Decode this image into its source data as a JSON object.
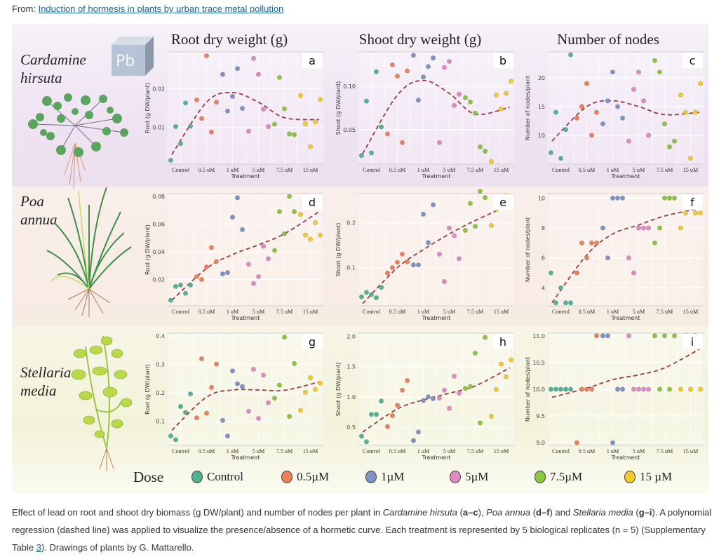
{
  "header": {
    "from_label": "From:",
    "article_link": "Induction of hormesis in plants by urban trace metal pollution"
  },
  "figure": {
    "column_titles": [
      "Root dry weight (g)",
      "Shoot dry weight (g)",
      "Number of nodes"
    ],
    "species": [
      {
        "line1": "Cardamine",
        "line2": "hirsuta"
      },
      {
        "line1": "Poa",
        "line2": "annua"
      },
      {
        "line1": "Stellaria",
        "line2": "media"
      }
    ],
    "element_badge": "Pb",
    "legend": {
      "title": "Dose",
      "items": [
        {
          "label": "Control",
          "color": "#4fb394"
        },
        {
          "label": "0.5µM",
          "color": "#ee7f5a"
        },
        {
          "label": "1µM",
          "color": "#7d93c6"
        },
        {
          "label": "5µM",
          "color": "#e08ac4"
        },
        {
          "label": "7.5µM",
          "color": "#8cc63f"
        },
        {
          "label": "15 µM",
          "color": "#f2cc2c"
        }
      ]
    },
    "fit_color": "#9b3a48"
  },
  "chart_data": [
    {
      "panel": "a",
      "type": "scatter",
      "title": "Root dry weight (g)",
      "xlabel": "Treatment",
      "ylabel": "Root (g DW/plant)",
      "categories": [
        "Control",
        "0.5 uM",
        "1 uM",
        "5 uM",
        "7.5 uM",
        "15 uM"
      ],
      "yticks": [
        0.01,
        0.02
      ],
      "ylim": [
        0.0005,
        0.0295
      ],
      "series": [
        {
          "name": "Control",
          "values": [
            0.0015,
            0.0102,
            0.0058,
            0.0163,
            0.0103
          ]
        },
        {
          "name": "0.5 uM",
          "values": [
            0.0171,
            0.0123,
            0.0285,
            0.0088,
            0.0165
          ]
        },
        {
          "name": "1 uM",
          "values": [
            0.0237,
            0.0142,
            0.018,
            0.0252,
            0.0149
          ]
        },
        {
          "name": "5 uM",
          "values": [
            0.009,
            0.0278,
            0.0237,
            0.0147,
            0.0102
          ]
        },
        {
          "name": "7.5 uM",
          "values": [
            0.0108,
            0.0229,
            0.0148,
            0.0083,
            0.0081
          ]
        },
        {
          "name": "15 uM",
          "values": [
            0.0182,
            0.0109,
            0.005,
            0.0114,
            0.0172
          ]
        }
      ],
      "fit": [
        0.003,
        0.0165,
        0.019,
        0.0165,
        0.0125,
        0.012
      ]
    },
    {
      "panel": "b",
      "type": "scatter",
      "title": "Shoot dry weight (g)",
      "xlabel": "Treatment",
      "ylabel": "Shoot (g DW/plant)",
      "categories": [
        "Control",
        "0.5 uM",
        "1 uM",
        "5 uM",
        "7.5 uM",
        "15 uM"
      ],
      "yticks": [
        0.05,
        0.1
      ],
      "ylim": [
        0.01,
        0.14
      ],
      "series": [
        {
          "name": "Control",
          "values": [
            0.02,
            0.083,
            0.023,
            0.117,
            0.053
          ]
        },
        {
          "name": "0.5 uM",
          "values": [
            0.045,
            0.125,
            0.112,
            0.035,
            0.118
          ]
        },
        {
          "name": "1 uM",
          "values": [
            0.136,
            0.084,
            0.111,
            0.123,
            0.133
          ]
        },
        {
          "name": "5 uM",
          "values": [
            0.035,
            0.122,
            0.129,
            0.078,
            0.091
          ]
        },
        {
          "name": "7.5 uM",
          "values": [
            0.087,
            0.082,
            0.069,
            0.03,
            0.025
          ]
        },
        {
          "name": "15 uM",
          "values": [
            0.013,
            0.09,
            0.074,
            0.092,
            0.106
          ]
        }
      ],
      "fit": [
        0.022,
        0.09,
        0.107,
        0.092,
        0.068,
        0.076
      ]
    },
    {
      "panel": "c",
      "type": "scatter",
      "title": "Number of nodes",
      "xlabel": "Treatment",
      "ylabel": "Number of nodes/plant",
      "categories": [
        "Control",
        "0.5 uM",
        "1 uM",
        "5 uM",
        "7.5 uM",
        "15 uM"
      ],
      "yticks": [
        10,
        15,
        20
      ],
      "ylim": [
        5,
        24.5
      ],
      "series": [
        {
          "name": "Control",
          "values": [
            7,
            14,
            6,
            11,
            24
          ]
        },
        {
          "name": "0.5 uM",
          "values": [
            13,
            15,
            19,
            10,
            14
          ]
        },
        {
          "name": "1 uM",
          "values": [
            12,
            16,
            21,
            15,
            13
          ]
        },
        {
          "name": "5 uM",
          "values": [
            9,
            18,
            21,
            16,
            10
          ]
        },
        {
          "name": "7.5 uM",
          "values": [
            23,
            21,
            12,
            8,
            9
          ]
        },
        {
          "name": "15 uM",
          "values": [
            17,
            14,
            6,
            14,
            19
          ]
        }
      ],
      "fit": [
        9,
        15,
        16,
        15,
        13.6,
        14
      ]
    },
    {
      "panel": "d",
      "type": "scatter",
      "title": "",
      "xlabel": "Treatment",
      "ylabel": "Root (g DW/plant)",
      "categories": [
        "Control",
        "0.5 uM",
        "1 uM",
        "5 uM",
        "7.5 uM",
        "15 uM"
      ],
      "yticks": [
        0.02,
        0.04,
        0.06,
        0.08
      ],
      "ylim": [
        0.001,
        0.082
      ],
      "series": [
        {
          "name": "Control",
          "values": [
            0.005,
            0.015,
            0.016,
            0.01,
            0.016
          ]
        },
        {
          "name": "0.5 uM",
          "values": [
            0.022,
            0.02,
            0.029,
            0.043,
            0.033
          ]
        },
        {
          "name": "1 uM",
          "values": [
            0.024,
            0.025,
            0.065,
            0.079,
            0.056
          ]
        },
        {
          "name": "5 uM",
          "values": [
            0.031,
            0.017,
            0.022,
            0.044,
            0.035
          ]
        },
        {
          "name": "7.5 uM",
          "values": [
            0.041,
            0.069,
            0.053,
            0.08,
            0.069
          ]
        },
        {
          "name": "15 uM",
          "values": [
            0.067,
            0.052,
            0.049,
            0.061,
            0.052
          ]
        }
      ],
      "fit": [
        0.005,
        0.028,
        0.038,
        0.045,
        0.053,
        0.069
      ]
    },
    {
      "panel": "e",
      "type": "scatter",
      "title": "",
      "xlabel": "Treatment",
      "ylabel": "Shoot (g DW/plant)",
      "categories": [
        "Control",
        "0.5 uM",
        "1 uM",
        "5 uM",
        "7.5 uM",
        "15 uM"
      ],
      "yticks": [
        0.1,
        0.2
      ],
      "ylim": [
        0.015,
        0.265
      ],
      "series": [
        {
          "name": "Control",
          "values": [
            0.035,
            0.045,
            0.04,
            0.033,
            0.056
          ]
        },
        {
          "name": "0.5 uM",
          "values": [
            0.088,
            0.1,
            0.112,
            0.13,
            0.113
          ]
        },
        {
          "name": "1 uM",
          "values": [
            0.106,
            0.106,
            0.219,
            0.156,
            0.24
          ]
        },
        {
          "name": "5 uM",
          "values": [
            0.13,
            0.069,
            0.188,
            0.171,
            0.12
          ]
        },
        {
          "name": "7.5 uM",
          "values": [
            0.183,
            0.243,
            0.192,
            0.27,
            0.256
          ]
        },
        {
          "name": "15 uM",
          "values": [
            0.194,
            0.23,
            0.25,
            0.26,
            0.255
          ]
        }
      ],
      "fit": [
        0.02,
        0.1,
        0.14,
        0.175,
        0.205,
        0.24
      ]
    },
    {
      "panel": "f",
      "type": "scatter",
      "title": "",
      "xlabel": "Treatment",
      "ylabel": "Number of nodes/plant",
      "categories": [
        "Control",
        "0.5 uM",
        "1 uM",
        "5 uM",
        "7.5 uM",
        "15 uM"
      ],
      "yticks": [
        4,
        6,
        8,
        10
      ],
      "ylim": [
        2.8,
        10.3
      ],
      "series": [
        {
          "name": "Control",
          "values": [
            5,
            3,
            4,
            3,
            3
          ]
        },
        {
          "name": "0.5 uM",
          "values": [
            5,
            7,
            6,
            7,
            7
          ]
        },
        {
          "name": "1 uM",
          "values": [
            8,
            6,
            10,
            10,
            10
          ]
        },
        {
          "name": "5 uM",
          "values": [
            6,
            5,
            8,
            8,
            8
          ]
        },
        {
          "name": "7.5 uM",
          "values": [
            7,
            8,
            10,
            10,
            10
          ]
        },
        {
          "name": "15 uM",
          "values": [
            8,
            9,
            10,
            9,
            9
          ]
        }
      ],
      "fit": [
        3,
        6.2,
        7.6,
        8.2,
        8.8,
        9.3
      ]
    },
    {
      "panel": "g",
      "type": "scatter",
      "title": "",
      "xlabel": "Treatment",
      "ylabel": "Root (g DW/plant)",
      "categories": [
        "Control",
        "0.5 uM",
        "1 uM",
        "5 uM",
        "7.5 uM",
        "15 uM"
      ],
      "yticks": [
        0.1,
        0.2,
        0.3,
        0.4
      ],
      "ylim": [
        0.015,
        0.41
      ],
      "series": [
        {
          "name": "Control",
          "values": [
            0.048,
            0.035,
            0.152,
            0.131,
            0.196
          ]
        },
        {
          "name": "0.5 uM",
          "values": [
            0.112,
            0.32,
            0.128,
            0.219,
            0.301
          ]
        },
        {
          "name": "1 uM",
          "values": [
            0.103,
            0.048,
            0.277,
            0.232,
            0.222
          ]
        },
        {
          "name": "5 uM",
          "values": [
            0.135,
            0.283,
            0.11,
            0.262,
            0.165
          ]
        },
        {
          "name": "7.5 uM",
          "values": [
            0.181,
            0.227,
            0.396,
            0.117,
            0.303
          ]
        },
        {
          "name": "15 uM",
          "values": [
            0.138,
            0.202,
            0.253,
            0.212,
            0.234
          ]
        }
      ],
      "fit": [
        0.068,
        0.185,
        0.21,
        0.21,
        0.209,
        0.238
      ]
    },
    {
      "panel": "h",
      "type": "scatter",
      "title": "",
      "xlabel": "Treatment",
      "ylabel": "Shoot (g DW/plant)",
      "categories": [
        "Control",
        "0.5 uM",
        "1 uM",
        "5 uM",
        "7.5 uM",
        "15 uM"
      ],
      "yticks": [
        0.5,
        1.0,
        1.5,
        2.0
      ],
      "ylim": [
        0.2,
        2.05
      ],
      "series": [
        {
          "name": "Control",
          "values": [
            0.35,
            0.26,
            0.71,
            0.71,
            0.93
          ]
        },
        {
          "name": "0.5 uM",
          "values": [
            0.51,
            0.69,
            0.86,
            1.11,
            1.27
          ]
        },
        {
          "name": "1 uM",
          "values": [
            0.28,
            0.42,
            0.94,
            1.0,
            0.97
          ]
        },
        {
          "name": "5 uM",
          "values": [
            0.98,
            1.11,
            0.81,
            1.34,
            1.06
          ]
        },
        {
          "name": "7.5 uM",
          "values": [
            1.14,
            1.17,
            1.72,
            0.57,
            1.98
          ]
        },
        {
          "name": "15 uM",
          "values": [
            0.68,
            1.12,
            1.54,
            1.33,
            1.61
          ]
        }
      ],
      "fit": [
        0.42,
        0.8,
        0.95,
        1.06,
        1.18,
        1.48
      ]
    },
    {
      "panel": "i",
      "type": "scatter",
      "title": "",
      "xlabel": "Treatment",
      "ylabel": "Number of nodes/plant",
      "categories": [
        "Control",
        "0.5 uM",
        "1 uM",
        "5 uM",
        "7.5 uM",
        "15 uM"
      ],
      "yticks": [
        9.0,
        9.5,
        10.0,
        10.5,
        11.0
      ],
      "ylim": [
        8.95,
        11.05
      ],
      "series": [
        {
          "name": "Control",
          "values": [
            10,
            10,
            10,
            10,
            10
          ]
        },
        {
          "name": "0.5 uM",
          "values": [
            9,
            10,
            10,
            10,
            11
          ]
        },
        {
          "name": "1 uM",
          "values": [
            11,
            11,
            9,
            10,
            10
          ]
        },
        {
          "name": "5 uM",
          "values": [
            11,
            10,
            10,
            10,
            10
          ]
        },
        {
          "name": "7.5 uM",
          "values": [
            11,
            10,
            11,
            10,
            11
          ]
        },
        {
          "name": "15 uM",
          "values": [
            10,
            11,
            10,
            11,
            10
          ]
        }
      ],
      "fit": [
        9.85,
        10.02,
        10.18,
        10.27,
        10.4,
        10.75
      ]
    }
  ],
  "caption": {
    "text1": "Effect of lead on root and shoot dry biomass (g DW/plant) and number of nodes per plant in ",
    "sp1": "Cardamine hirsuta",
    "r1": "a–c",
    "text2": "), ",
    "sp2": "Poa annua",
    "r2": "d–f",
    "text3": ") and ",
    "sp3": "Stellaria media",
    "r3": "g–i",
    "text4": "). A polynomial regression (dashed line) was applied to visualize the presence/absence of a hormetic curve. Each treatment is represented by 5 biological replicates (n = 5) (Supplementary Table ",
    "table_link": "3",
    "text5": "). Drawings of plants by G. Mattarello."
  }
}
